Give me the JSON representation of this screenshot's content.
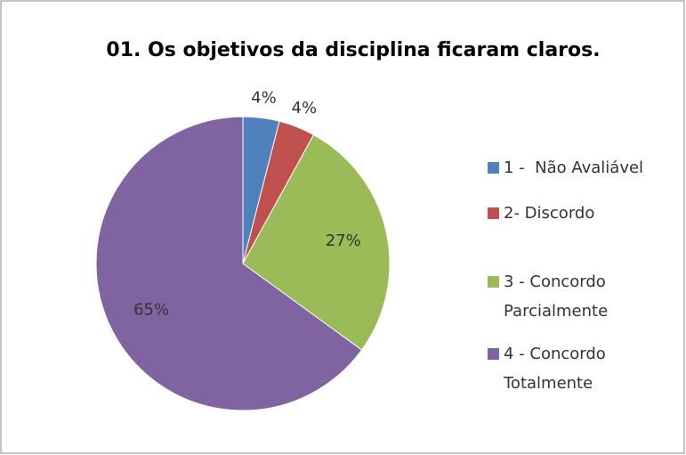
{
  "chart_data": {
    "type": "pie",
    "title": "01. Os objetivos da disciplina ficaram claros.",
    "categories": [
      "1 -  Não Avaliável",
      "2- Discordo",
      "3 - Concordo Parcialmente",
      "4 - Concordo Totalmente"
    ],
    "values": [
      4,
      4,
      27,
      65
    ],
    "value_labels": [
      "4%",
      "4%",
      "27%",
      "65%"
    ],
    "colors": [
      "#4f81bd",
      "#c0504d",
      "#9bbb59",
      "#8064a2"
    ],
    "legend": "right"
  }
}
